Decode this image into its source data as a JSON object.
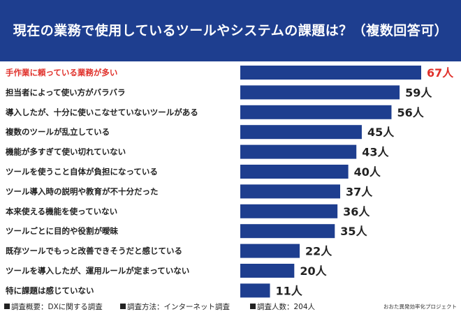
{
  "title": "現在の業務で使用しているツールやシステムの課題は？（複数回答可）",
  "colors": {
    "header_bg": "#1e3e8f",
    "bar": "#1e3e8f",
    "highlight": "#e0302a",
    "text": "#222222"
  },
  "chart_data": {
    "type": "bar",
    "orientation": "horizontal",
    "unit": "人",
    "categories": [
      "手作業に頼っている業務が多い",
      "担当者によって使い方がバラバラ",
      "導入したが、十分に使いこなせていないツールがある",
      "複数のツールが乱立している",
      "機能が多すぎて使い切れていない",
      "ツールを使うこと自体が負担になっている",
      "ツール導入時の説明や教育が不十分だった",
      "本来使える機能を使っていない",
      "ツールごとに目的や役割が曖昧",
      "既存ツールでもっと改善できそうだと感じている",
      "ツールを導入したが、運用ルールが定まっていない",
      "特に課題は感じていない"
    ],
    "values": [
      67,
      59,
      56,
      45,
      43,
      40,
      37,
      36,
      35,
      22,
      20,
      11
    ],
    "value_labels": [
      "67人",
      "59人",
      "56人",
      "45人",
      "43人",
      "40人",
      "37人",
      "36人",
      "35人",
      "22人",
      "20人",
      "11人"
    ],
    "highlight_index": 0,
    "xlim": [
      0,
      67
    ],
    "grid": false
  },
  "footer": {
    "survey_overview": "調査概要：DXに関する調査",
    "survey_method": "調査方法：インターネット調査",
    "respondents": "調査人数：204人",
    "credit": "おおた異発効率化プロジェクト"
  }
}
